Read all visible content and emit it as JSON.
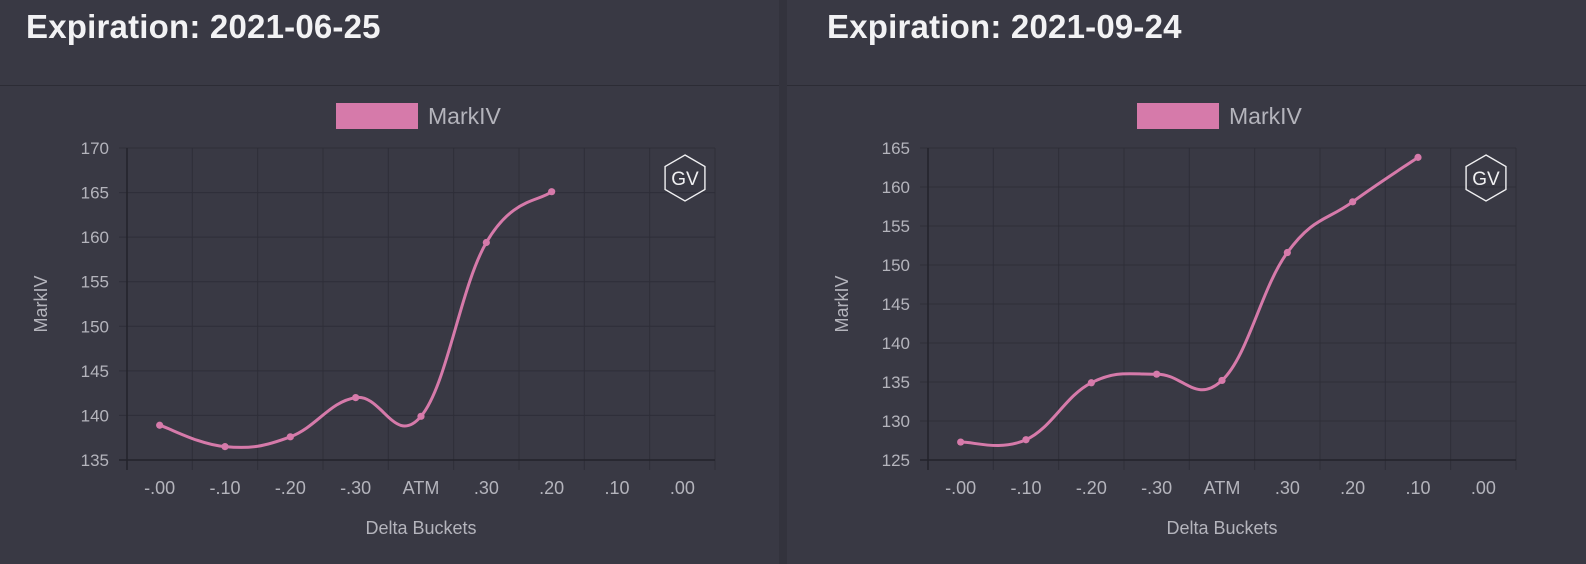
{
  "colors": {
    "background": "#393944",
    "grid": "#2e2e38",
    "axis": "#23232b",
    "text": "#b4b4bc",
    "series": "#d67aaa"
  },
  "charts": [
    {
      "header": "Expiration: 2021-06-25",
      "watermark": "GV",
      "chart_data": {
        "type": "line",
        "categories": [
          "-.00",
          "-.10",
          "-.20",
          "-.30",
          "ATM",
          ".30",
          ".20",
          ".10",
          ".00"
        ],
        "series": [
          {
            "name": "MarkIV",
            "values": [
              138.9,
              136.5,
              137.6,
              142.0,
              139.9,
              159.4,
              165.1,
              null,
              null
            ]
          }
        ],
        "xlabel": "Delta Buckets",
        "ylabel": "MarkIV",
        "ylim": [
          135,
          170
        ],
        "yticks": [
          135,
          140,
          145,
          150,
          155,
          160,
          165,
          170
        ],
        "grid": true,
        "legend_position": "top"
      }
    },
    {
      "header": "Expiration: 2021-09-24",
      "watermark": "GV",
      "chart_data": {
        "type": "line",
        "categories": [
          "-.00",
          "-.10",
          "-.20",
          "-.30",
          "ATM",
          ".30",
          ".20",
          ".10",
          ".00"
        ],
        "series": [
          {
            "name": "MarkIV",
            "values": [
              127.3,
              127.6,
              134.9,
              136.0,
              135.2,
              151.6,
              158.1,
              163.8,
              null
            ]
          }
        ],
        "xlabel": "Delta Buckets",
        "ylabel": "MarkIV",
        "ylim": [
          125,
          165
        ],
        "yticks": [
          125,
          130,
          135,
          140,
          145,
          150,
          155,
          160,
          165
        ],
        "grid": true,
        "legend_position": "top"
      }
    }
  ]
}
